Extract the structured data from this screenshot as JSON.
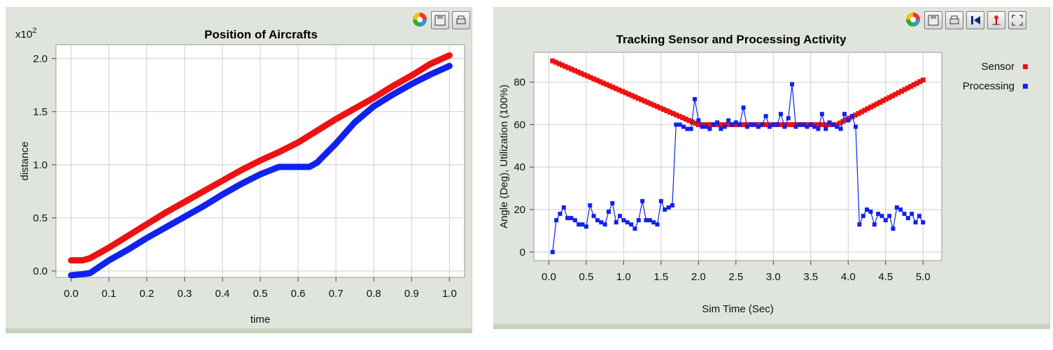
{
  "left_chart": {
    "title": "Position of Aircrafts",
    "xlabel": "time",
    "ylabel": "distance",
    "exponent_base": "x10",
    "exponent_power": "2",
    "x_ticks": [
      "0.0",
      "0.1",
      "0.2",
      "0.3",
      "0.4",
      "0.5",
      "0.6",
      "0.7",
      "0.8",
      "0.9",
      "1.0"
    ],
    "y_ticks": [
      "0.0",
      "0.5",
      "1.0",
      "1.5",
      "2.0"
    ],
    "toolbar": [
      "palette-icon",
      "save-icon",
      "print-icon"
    ]
  },
  "right_chart": {
    "title": "Tracking Sensor and Processing  Activity",
    "xlabel": "Sim Time (Sec)",
    "ylabel": "Angle (Deg), Utilization (100%)",
    "x_ticks": [
      "0.0",
      "0.5",
      "1.0",
      "1.5",
      "2.0",
      "2.5",
      "3.0",
      "3.5",
      "4.0",
      "4.5",
      "5.0"
    ],
    "y_ticks": [
      "0",
      "20",
      "40",
      "60",
      "80"
    ],
    "legend": [
      "Sensor",
      "Processing"
    ],
    "toolbar": [
      "palette-icon",
      "save-icon",
      "print-icon",
      "rewind-icon",
      "marker-icon",
      "fullscreen-icon"
    ]
  },
  "colors": {
    "red": "#ee1111",
    "blue": "#1122ee"
  },
  "chart_data": [
    {
      "type": "line",
      "title": "Position of Aircrafts",
      "xlabel": "time",
      "ylabel": "distance",
      "y_multiplier": 100,
      "xlim": [
        -0.04,
        1.04
      ],
      "ylim": [
        -0.06,
        2.13
      ],
      "series": [
        {
          "color": "#ee1111",
          "x": [
            0.0,
            0.03,
            0.05,
            0.1,
            0.15,
            0.2,
            0.25,
            0.3,
            0.35,
            0.4,
            0.45,
            0.5,
            0.55,
            0.6,
            0.65,
            0.7,
            0.75,
            0.8,
            0.85,
            0.9,
            0.95,
            1.0
          ],
          "y": [
            0.1,
            0.1,
            0.12,
            0.22,
            0.33,
            0.44,
            0.55,
            0.65,
            0.75,
            0.85,
            0.95,
            1.04,
            1.12,
            1.21,
            1.32,
            1.43,
            1.53,
            1.63,
            1.74,
            1.84,
            1.95,
            2.03
          ]
        },
        {
          "color": "#1122ee",
          "x": [
            0.0,
            0.03,
            0.05,
            0.1,
            0.15,
            0.2,
            0.25,
            0.3,
            0.35,
            0.4,
            0.45,
            0.5,
            0.55,
            0.6,
            0.63,
            0.65,
            0.7,
            0.75,
            0.8,
            0.85,
            0.9,
            0.95,
            1.0
          ],
          "y": [
            -0.04,
            -0.03,
            -0.02,
            0.1,
            0.2,
            0.31,
            0.41,
            0.51,
            0.61,
            0.72,
            0.82,
            0.91,
            0.98,
            0.98,
            0.98,
            1.02,
            1.2,
            1.4,
            1.55,
            1.66,
            1.76,
            1.85,
            1.93
          ]
        }
      ]
    },
    {
      "type": "line",
      "title": "Tracking Sensor and Processing  Activity",
      "xlabel": "Sim Time (Sec)",
      "ylabel": "Angle (Deg), Utilization (100%)",
      "xlim": [
        -0.2,
        5.25
      ],
      "ylim": [
        -4,
        94
      ],
      "legend_position": "top-right",
      "series": [
        {
          "name": "Sensor",
          "color": "#ee1111",
          "marker": "square",
          "x": [
            0.05,
            2.0,
            3.85,
            5.0
          ],
          "y": [
            90,
            60,
            60,
            81
          ]
        },
        {
          "name": "Processing",
          "color": "#1122ee",
          "marker": "square",
          "x": [
            0.05,
            0.1,
            0.15,
            0.2,
            0.25,
            0.3,
            0.35,
            0.4,
            0.45,
            0.5,
            0.55,
            0.6,
            0.65,
            0.7,
            0.75,
            0.8,
            0.85,
            0.9,
            0.95,
            1.0,
            1.05,
            1.1,
            1.15,
            1.2,
            1.25,
            1.3,
            1.35,
            1.4,
            1.45,
            1.5,
            1.55,
            1.6,
            1.65,
            1.7,
            1.75,
            1.8,
            1.85,
            1.9,
            1.95,
            2.0,
            2.05,
            2.1,
            2.15,
            2.2,
            2.25,
            2.3,
            2.35,
            2.4,
            2.45,
            2.5,
            2.55,
            2.6,
            2.65,
            2.7,
            2.75,
            2.8,
            2.85,
            2.9,
            2.95,
            3.0,
            3.05,
            3.1,
            3.15,
            3.2,
            3.25,
            3.3,
            3.35,
            3.4,
            3.45,
            3.5,
            3.55,
            3.6,
            3.65,
            3.7,
            3.75,
            3.8,
            3.85,
            3.9,
            3.95,
            4.0,
            4.05,
            4.1,
            4.15,
            4.2,
            4.25,
            4.3,
            4.35,
            4.4,
            4.45,
            4.5,
            4.55,
            4.6,
            4.65,
            4.7,
            4.75,
            4.8,
            4.85,
            4.9,
            4.95,
            5.0
          ],
          "y": [
            0,
            15,
            18,
            21,
            16,
            16,
            15,
            13,
            13,
            12,
            22,
            17,
            15,
            14,
            13,
            19,
            23,
            14,
            17,
            15,
            14,
            13,
            11,
            15,
            24,
            15,
            15,
            14,
            13,
            24,
            20,
            21,
            22,
            60,
            60,
            59,
            58,
            58,
            72,
            62,
            59,
            59,
            58,
            60,
            61,
            58,
            59,
            62,
            60,
            61,
            60,
            68,
            59,
            60,
            60,
            59,
            60,
            64,
            59,
            60,
            60,
            65,
            59,
            63,
            79,
            59,
            60,
            60,
            59,
            60,
            59,
            58,
            65,
            58,
            61,
            60,
            59,
            58,
            65,
            62,
            64,
            59,
            13,
            17,
            20,
            19,
            13,
            18,
            17,
            15,
            17,
            11,
            21,
            20,
            18,
            16,
            18,
            14,
            17,
            14
          ]
        }
      ]
    }
  ]
}
